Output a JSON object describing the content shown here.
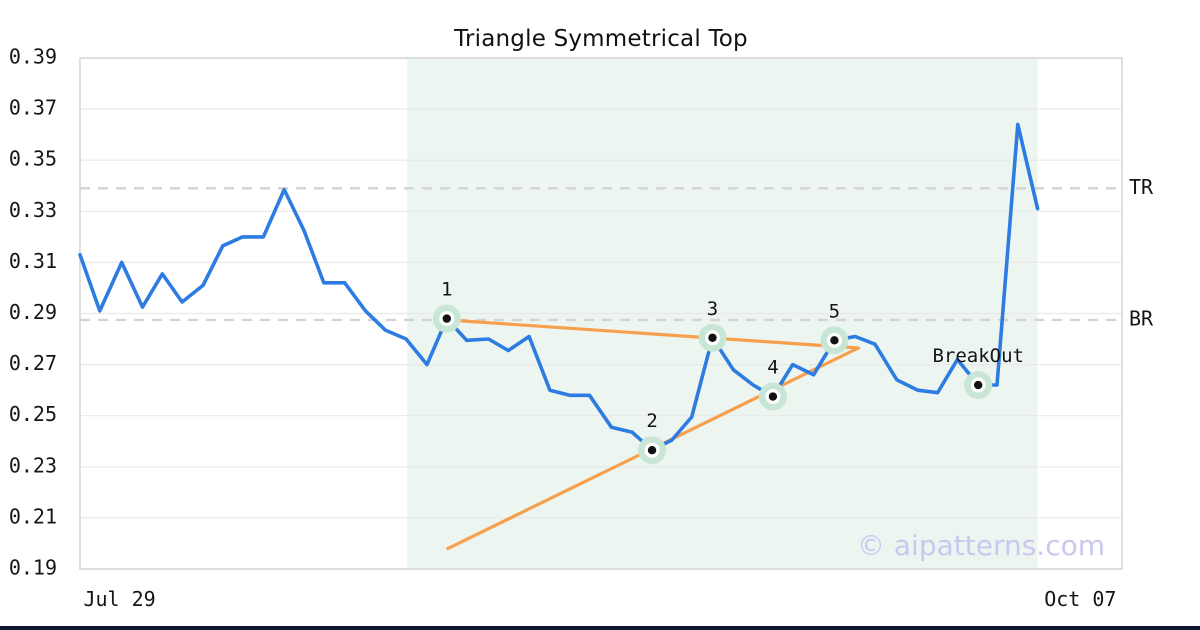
{
  "page": {
    "title": "Triangle Symmetrical Top",
    "watermark": "© aipatterns.com",
    "colors": {
      "price_line": "#2d7ce1",
      "trendline": "#f6a04d",
      "marker_halo": "#c8e6d5",
      "marker_ring": "#ffffff",
      "marker_dot": "#111111",
      "region": "#edf5f0",
      "grid": "#e9e9e9",
      "frame": "#d7d7d7",
      "dashed": "#d4d4d4",
      "text": "#151515",
      "watermark": "#c9c8f0",
      "bottom_bar": "#0d1630"
    }
  },
  "chart_data": {
    "type": "line",
    "title": "Triangle Symmetrical Top",
    "xlabel": "",
    "ylabel": "",
    "ylim": [
      0.19,
      0.39
    ],
    "yticks": [
      0.19,
      0.21,
      0.23,
      0.25,
      0.27,
      0.29,
      0.31,
      0.33,
      0.35,
      0.37,
      0.39
    ],
    "grid": "horizontal",
    "legend": "none",
    "xtick_labels": [
      {
        "label": "Jul 29",
        "pos": 0.038
      },
      {
        "label": "Oct 07",
        "pos": 0.96
      }
    ],
    "series": [
      {
        "name": "price",
        "points": [
          [
            0.0,
            0.313
          ],
          [
            0.019,
            0.291
          ],
          [
            0.04,
            0.31
          ],
          [
            0.06,
            0.2925
          ],
          [
            0.079,
            0.3055
          ],
          [
            0.098,
            0.2945
          ],
          [
            0.118,
            0.301
          ],
          [
            0.137,
            0.3165
          ],
          [
            0.156,
            0.32
          ],
          [
            0.176,
            0.32
          ],
          [
            0.196,
            0.3385
          ],
          [
            0.215,
            0.3225
          ],
          [
            0.234,
            0.302
          ],
          [
            0.254,
            0.302
          ],
          [
            0.274,
            0.291
          ],
          [
            0.293,
            0.2835
          ],
          [
            0.313,
            0.28
          ],
          [
            0.333,
            0.27
          ],
          [
            0.352,
            0.288
          ],
          [
            0.371,
            0.2795
          ],
          [
            0.392,
            0.28
          ],
          [
            0.411,
            0.2755
          ],
          [
            0.431,
            0.281
          ],
          [
            0.451,
            0.26
          ],
          [
            0.47,
            0.258
          ],
          [
            0.489,
            0.258
          ],
          [
            0.51,
            0.2455
          ],
          [
            0.53,
            0.2435
          ],
          [
            0.549,
            0.2365
          ],
          [
            0.568,
            0.2405
          ],
          [
            0.587,
            0.2495
          ],
          [
            0.607,
            0.2805
          ],
          [
            0.627,
            0.268
          ],
          [
            0.646,
            0.262
          ],
          [
            0.665,
            0.2575
          ],
          [
            0.684,
            0.27
          ],
          [
            0.704,
            0.266
          ],
          [
            0.724,
            0.2795
          ],
          [
            0.744,
            0.281
          ],
          [
            0.763,
            0.278
          ],
          [
            0.784,
            0.264
          ],
          [
            0.804,
            0.26
          ],
          [
            0.823,
            0.259
          ],
          [
            0.842,
            0.272
          ],
          [
            0.862,
            0.262
          ],
          [
            0.88,
            0.262
          ],
          [
            0.9,
            0.364
          ],
          [
            0.919,
            0.331
          ]
        ]
      }
    ],
    "trendlines": [
      {
        "name": "upper",
        "x1": 0.352,
        "y1": 0.2875,
        "x2": 0.747,
        "y2": 0.2765
      },
      {
        "name": "lower",
        "x1": 0.353,
        "y1": 0.198,
        "x2": 0.747,
        "y2": 0.2765
      }
    ],
    "hlines": [
      {
        "label": "TR",
        "value": 0.339
      },
      {
        "label": "BR",
        "value": 0.2875
      }
    ],
    "pattern_region": {
      "x1": 0.314,
      "x2": 0.919
    },
    "markers": [
      {
        "label": "1",
        "x": 0.352,
        "y": 0.288
      },
      {
        "label": "2",
        "x": 0.549,
        "y": 0.2365
      },
      {
        "label": "3",
        "x": 0.607,
        "y": 0.2805
      },
      {
        "label": "4",
        "x": 0.665,
        "y": 0.2575
      },
      {
        "label": "5",
        "x": 0.724,
        "y": 0.2795
      },
      {
        "label": "BreakOut",
        "x": 0.862,
        "y": 0.262
      }
    ]
  }
}
